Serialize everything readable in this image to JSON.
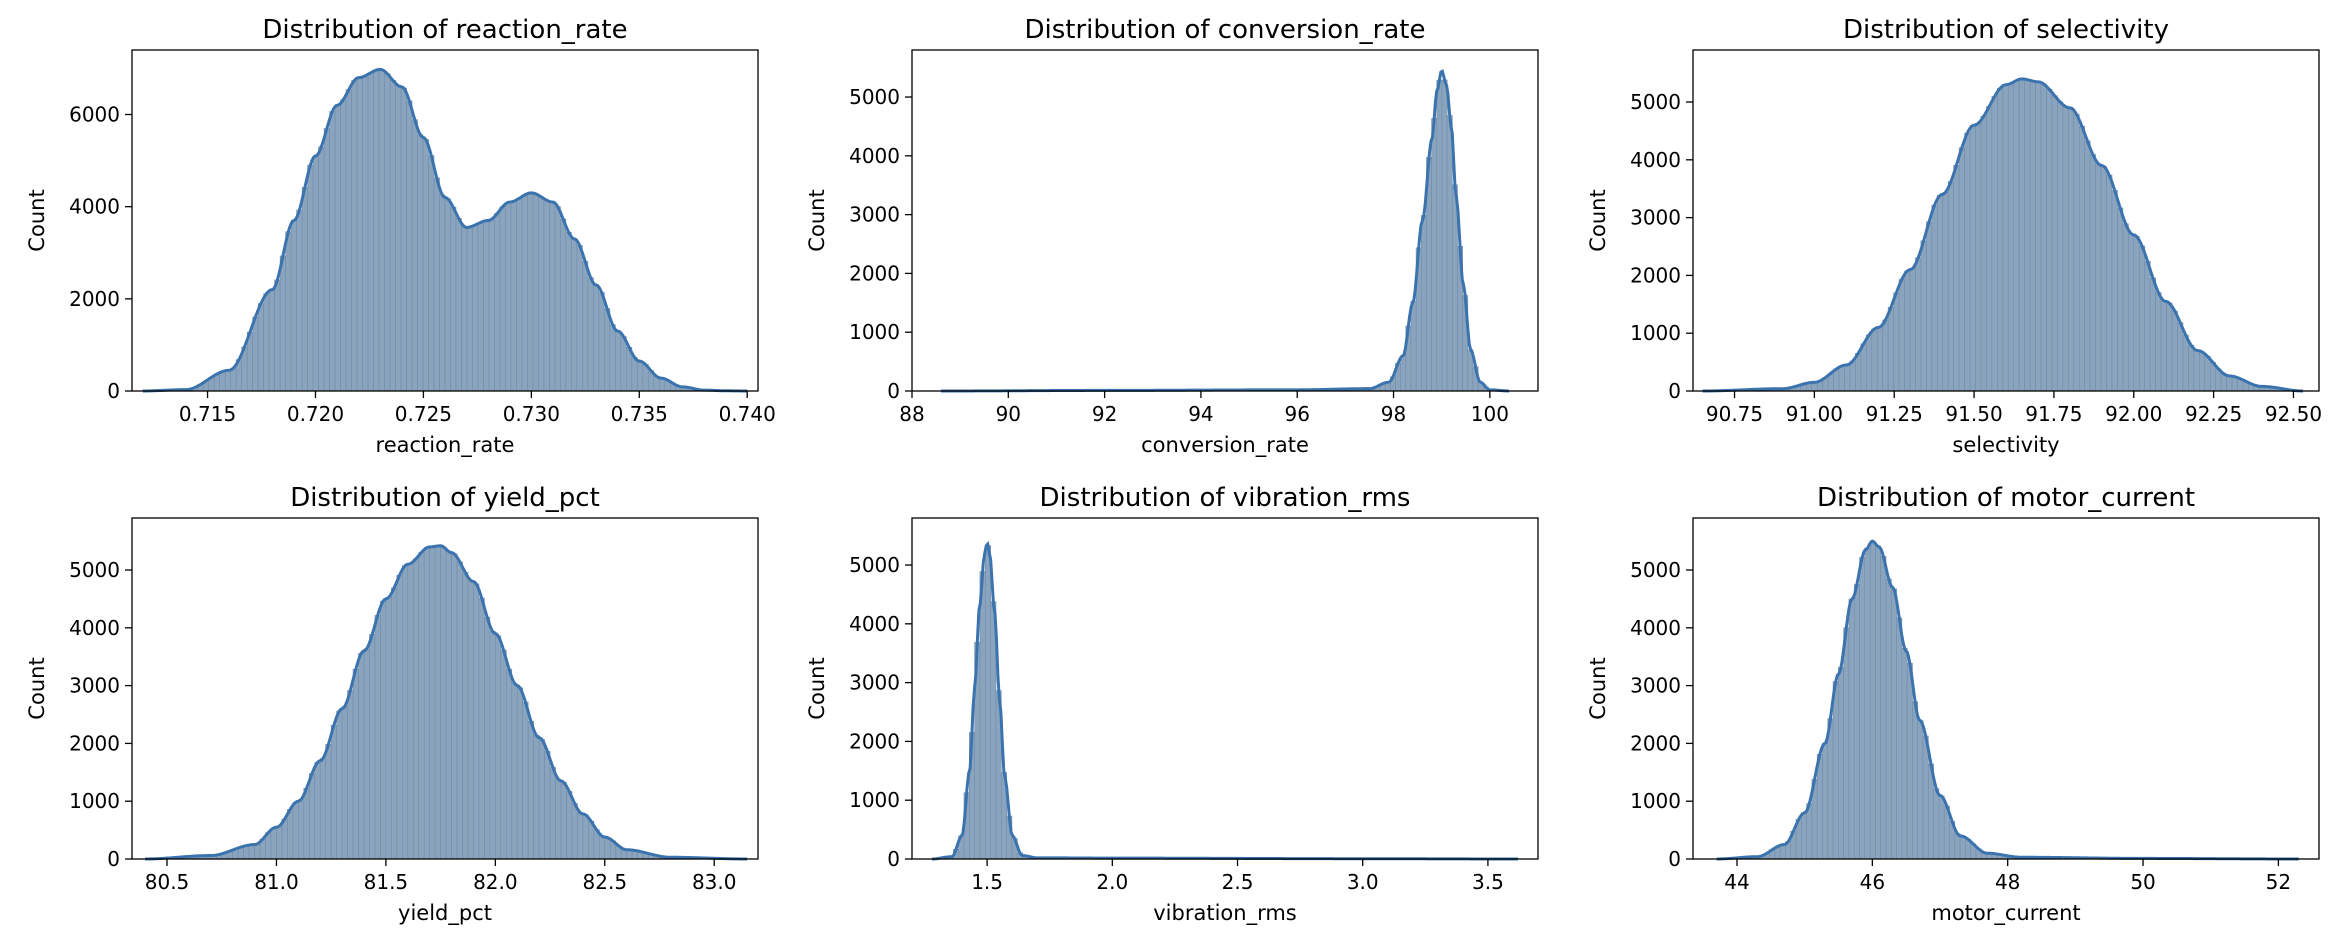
{
  "chart_data": [
    {
      "type": "histogram",
      "title": "Distribution of reaction_rate",
      "xlabel": "reaction_rate",
      "ylabel": "Count",
      "xlim": [
        0.7115,
        0.7405
      ],
      "ylim": [
        0,
        7400
      ],
      "xticks": [
        0.715,
        0.72,
        0.725,
        0.73,
        0.735,
        0.74
      ],
      "xtick_labels": [
        "0.715",
        "0.720",
        "0.725",
        "0.730",
        "0.735",
        "0.740"
      ],
      "yticks": [
        0,
        2000,
        4000,
        6000
      ],
      "ytick_labels": [
        "0",
        "2000",
        "4000",
        "6000"
      ],
      "kde": {
        "x": [
          0.712,
          0.714,
          0.716,
          0.718,
          0.719,
          0.72,
          0.721,
          0.722,
          0.723,
          0.724,
          0.725,
          0.726,
          0.727,
          0.728,
          0.729,
          0.73,
          0.731,
          0.732,
          0.733,
          0.734,
          0.735,
          0.736,
          0.737,
          0.738,
          0.739,
          0.74
        ],
        "y": [
          0,
          30,
          450,
          2200,
          3700,
          5100,
          6200,
          6800,
          6980,
          6600,
          5500,
          4200,
          3550,
          3700,
          4100,
          4300,
          4100,
          3300,
          2300,
          1300,
          650,
          280,
          90,
          20,
          5,
          0
        ]
      }
    },
    {
      "type": "histogram",
      "title": "Distribution of conversion_rate",
      "xlabel": "conversion_rate",
      "ylabel": "Count",
      "xlim": [
        88.0,
        101.0
      ],
      "ylim": [
        0,
        5800
      ],
      "xticks": [
        88,
        90,
        92,
        94,
        96,
        98,
        100
      ],
      "xtick_labels": [
        "88",
        "90",
        "92",
        "94",
        "96",
        "98",
        "100"
      ],
      "yticks": [
        0,
        1000,
        2000,
        3000,
        4000,
        5000
      ],
      "ytick_labels": [
        "0",
        "1000",
        "2000",
        "3000",
        "4000",
        "5000"
      ],
      "kde": {
        "x": [
          88.6,
          92.0,
          96.0,
          97.5,
          97.9,
          98.2,
          98.4,
          98.6,
          98.8,
          98.9,
          99.0,
          99.1,
          99.2,
          99.3,
          99.45,
          99.6,
          99.8,
          100.0,
          100.4
        ],
        "y": [
          0,
          10,
          20,
          40,
          150,
          600,
          1500,
          2900,
          4300,
          5100,
          5450,
          5200,
          4500,
          3300,
          1800,
          700,
          150,
          20,
          0
        ]
      }
    },
    {
      "type": "histogram",
      "title": "Distribution of selectivity",
      "xlabel": "selectivity",
      "ylabel": "Count",
      "xlim": [
        90.62,
        92.58
      ],
      "ylim": [
        0,
        5900
      ],
      "xticks": [
        90.75,
        91.0,
        91.25,
        91.5,
        91.75,
        92.0,
        92.25,
        92.5
      ],
      "xtick_labels": [
        "90.75",
        "91.00",
        "91.25",
        "91.50",
        "91.75",
        "92.00",
        "92.25",
        "92.50"
      ],
      "yticks": [
        0,
        1000,
        2000,
        3000,
        4000,
        5000
      ],
      "ytick_labels": [
        "0",
        "1000",
        "2000",
        "3000",
        "4000",
        "5000"
      ],
      "kde": {
        "x": [
          90.65,
          90.9,
          91.0,
          91.1,
          91.2,
          91.3,
          91.4,
          91.5,
          91.6,
          91.65,
          91.7,
          91.8,
          91.9,
          92.0,
          92.1,
          92.2,
          92.3,
          92.4,
          92.53
        ],
        "y": [
          0,
          40,
          150,
          450,
          1100,
          2100,
          3400,
          4600,
          5300,
          5400,
          5350,
          4900,
          3900,
          2700,
          1550,
          700,
          260,
          80,
          0
        ]
      }
    },
    {
      "type": "histogram",
      "title": "Distribution of yield_pct",
      "xlabel": "yield_pct",
      "ylabel": "Count",
      "xlim": [
        80.34,
        83.2
      ],
      "ylim": [
        0,
        5900
      ],
      "xticks": [
        80.5,
        81.0,
        81.5,
        82.0,
        82.5,
        83.0
      ],
      "xtick_labels": [
        "80.5",
        "81.0",
        "81.5",
        "82.0",
        "82.5",
        "83.0"
      ],
      "yticks": [
        0,
        1000,
        2000,
        3000,
        4000,
        5000
      ],
      "ytick_labels": [
        "0",
        "1000",
        "2000",
        "3000",
        "4000",
        "5000"
      ],
      "kde": {
        "x": [
          80.4,
          80.7,
          80.9,
          81.0,
          81.1,
          81.2,
          81.3,
          81.4,
          81.5,
          81.6,
          81.7,
          81.75,
          81.8,
          81.9,
          82.0,
          82.1,
          82.2,
          82.3,
          82.4,
          82.5,
          82.6,
          82.8,
          83.15
        ],
        "y": [
          0,
          60,
          250,
          550,
          1000,
          1700,
          2600,
          3600,
          4500,
          5100,
          5400,
          5420,
          5300,
          4800,
          3900,
          3000,
          2100,
          1350,
          780,
          380,
          160,
          30,
          0
        ]
      }
    },
    {
      "type": "histogram",
      "title": "Distribution of vibration_rms",
      "xlabel": "vibration_rms",
      "ylabel": "Count",
      "xlim": [
        1.2,
        3.7
      ],
      "ylim": [
        0,
        5800
      ],
      "xticks": [
        1.5,
        2.0,
        2.5,
        3.0,
        3.5
      ],
      "xtick_labels": [
        "1.5",
        "2.0",
        "2.5",
        "3.0",
        "3.5"
      ],
      "yticks": [
        0,
        1000,
        2000,
        3000,
        4000,
        5000
      ],
      "ytick_labels": [
        "0",
        "1000",
        "2000",
        "3000",
        "4000",
        "5000"
      ],
      "kde": {
        "x": [
          1.28,
          1.36,
          1.4,
          1.43,
          1.45,
          1.47,
          1.49,
          1.5,
          1.51,
          1.53,
          1.55,
          1.57,
          1.6,
          1.64,
          1.7,
          2.0,
          3.0,
          3.62
        ],
        "y": [
          0,
          40,
          400,
          1500,
          2900,
          4300,
          5200,
          5380,
          5200,
          4200,
          2700,
          1400,
          400,
          60,
          20,
          15,
          5,
          0
        ]
      }
    },
    {
      "type": "histogram",
      "title": "Distribution of motor_current",
      "xlabel": "motor_current",
      "ylabel": "Count",
      "xlim": [
        43.35,
        52.6
      ],
      "ylim": [
        0,
        5900
      ],
      "xticks": [
        44,
        46,
        48,
        50,
        52
      ],
      "xtick_labels": [
        "44",
        "46",
        "48",
        "50",
        "52"
      ],
      "yticks": [
        0,
        1000,
        2000,
        3000,
        4000,
        5000
      ],
      "ytick_labels": [
        "0",
        "1000",
        "2000",
        "3000",
        "4000",
        "5000"
      ],
      "kde": {
        "x": [
          43.7,
          44.3,
          44.7,
          45.0,
          45.3,
          45.5,
          45.7,
          45.9,
          46.0,
          46.1,
          46.3,
          46.5,
          46.7,
          47.0,
          47.3,
          47.7,
          48.2,
          50.0,
          52.3
        ],
        "y": [
          0,
          40,
          250,
          800,
          2000,
          3200,
          4500,
          5350,
          5500,
          5400,
          4700,
          3600,
          2400,
          1100,
          400,
          100,
          30,
          10,
          0
        ]
      }
    }
  ],
  "colors": {
    "bar_fill": "#8ba4be",
    "bar_edge": "#6f8daa",
    "kde_line": "#3b73ae",
    "axis": "#000000"
  }
}
